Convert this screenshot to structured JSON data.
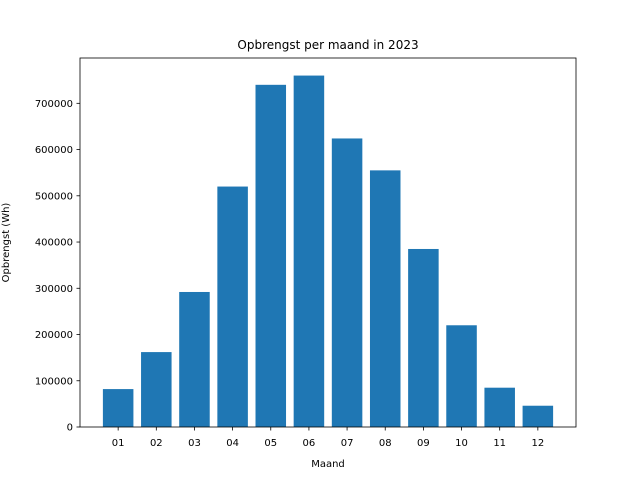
{
  "chart_data": {
    "type": "bar",
    "title": "Opbrengst per maand in 2023",
    "xlabel": "Maand",
    "ylabel": "Opbrengst (Wh)",
    "categories": [
      "01",
      "02",
      "03",
      "04",
      "05",
      "06",
      "07",
      "08",
      "09",
      "10",
      "11",
      "12"
    ],
    "values": [
      82000,
      162000,
      292000,
      520000,
      740000,
      760000,
      624000,
      555000,
      385000,
      220000,
      85000,
      46000
    ],
    "ylim": [
      0,
      798000
    ],
    "yticks": [
      0,
      100000,
      200000,
      300000,
      400000,
      500000,
      600000,
      700000
    ],
    "ytick_labels": [
      "0",
      "100000",
      "200000",
      "300000",
      "400000",
      "500000",
      "600000",
      "700000"
    ],
    "grid": false,
    "legend": "none",
    "bar_color": "#1f77b4"
  }
}
